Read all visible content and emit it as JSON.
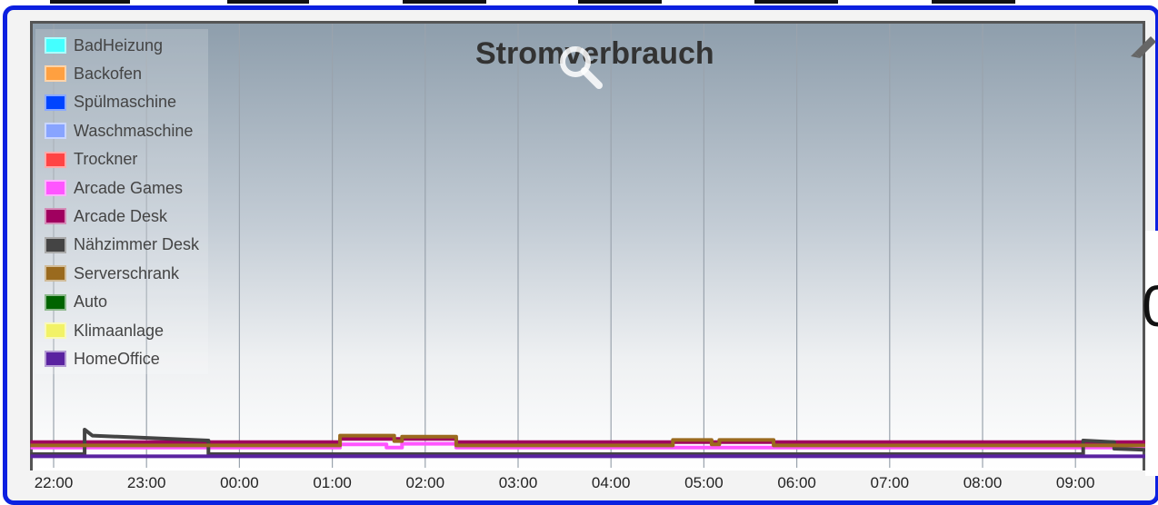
{
  "chart_data": {
    "type": "line",
    "title": "Stromverbrauch",
    "xlabel": "",
    "ylabel": "",
    "x_ticks": [
      "22:00",
      "23:00",
      "00:00",
      "01:00",
      "02:00",
      "03:00",
      "04:00",
      "05:00",
      "06:00",
      "07:00",
      "08:00",
      "09:00"
    ],
    "x_range": [
      "21:45",
      "09:45"
    ],
    "legend_position": "top-left",
    "grid": "vertical",
    "series": [
      {
        "name": "BadHeizung",
        "color": "#44ffff",
        "points": []
      },
      {
        "name": "Backofen",
        "color": "#ffa040",
        "points": []
      },
      {
        "name": "Spülmaschine",
        "color": "#0044ff",
        "points": []
      },
      {
        "name": "Waschmaschine",
        "color": "#88a4ff",
        "points": []
      },
      {
        "name": "Trockner",
        "color": "#ff4444",
        "points": []
      },
      {
        "name": "Arcade Games",
        "color": "#ff55ff",
        "points": [
          [
            "21:45",
            1.2
          ],
          [
            "01:05",
            1.2
          ],
          [
            "01:05",
            1.8
          ],
          [
            "01:35",
            1.8
          ],
          [
            "01:35",
            1.2
          ],
          [
            "01:45",
            1.2
          ],
          [
            "01:45",
            1.9
          ],
          [
            "02:20",
            1.9
          ],
          [
            "02:20",
            1.2
          ],
          [
            "09:45",
            1.2
          ]
        ]
      },
      {
        "name": "Arcade Desk",
        "color": "#a0005f",
        "points": [
          [
            "21:45",
            2.2
          ],
          [
            "01:05",
            2.2
          ],
          [
            "01:05",
            2.8
          ],
          [
            "02:20",
            2.8
          ],
          [
            "02:20",
            2.2
          ],
          [
            "09:45",
            2.2
          ]
        ]
      },
      {
        "name": "Nähzimmer Desk",
        "color": "#444444",
        "points": [
          [
            "21:45",
            0.0
          ],
          [
            "22:20",
            0.0
          ],
          [
            "22:20",
            4.5
          ],
          [
            "22:25",
            3.4
          ],
          [
            "23:40",
            2.5
          ],
          [
            "23:40",
            0.0
          ],
          [
            "09:05",
            0.0
          ],
          [
            "09:05",
            2.5
          ],
          [
            "09:25",
            2.2
          ],
          [
            "09:25",
            1.0
          ],
          [
            "09:45",
            0.8
          ]
        ]
      },
      {
        "name": "Serverschrank",
        "color": "#9a6a1e",
        "points": [
          [
            "21:45",
            1.6
          ],
          [
            "01:05",
            1.6
          ],
          [
            "01:05",
            3.4
          ],
          [
            "01:40",
            3.4
          ],
          [
            "01:40",
            2.4
          ],
          [
            "01:45",
            2.4
          ],
          [
            "01:45",
            3.2
          ],
          [
            "02:20",
            3.2
          ],
          [
            "02:20",
            1.6
          ],
          [
            "04:40",
            1.6
          ],
          [
            "04:40",
            2.6
          ],
          [
            "05:05",
            2.6
          ],
          [
            "05:05",
            1.8
          ],
          [
            "05:10",
            1.8
          ],
          [
            "05:10",
            2.6
          ],
          [
            "05:45",
            2.6
          ],
          [
            "05:45",
            1.6
          ],
          [
            "09:45",
            1.6
          ]
        ]
      },
      {
        "name": "Auto",
        "color": "#006400",
        "points": []
      },
      {
        "name": "Klimaanlage",
        "color": "#f2f266",
        "points": []
      },
      {
        "name": "HomeOffice",
        "color": "#5a22a0",
        "points": [
          [
            "21:45",
            -0.4
          ],
          [
            "09:45",
            -0.4
          ]
        ]
      }
    ]
  }
}
